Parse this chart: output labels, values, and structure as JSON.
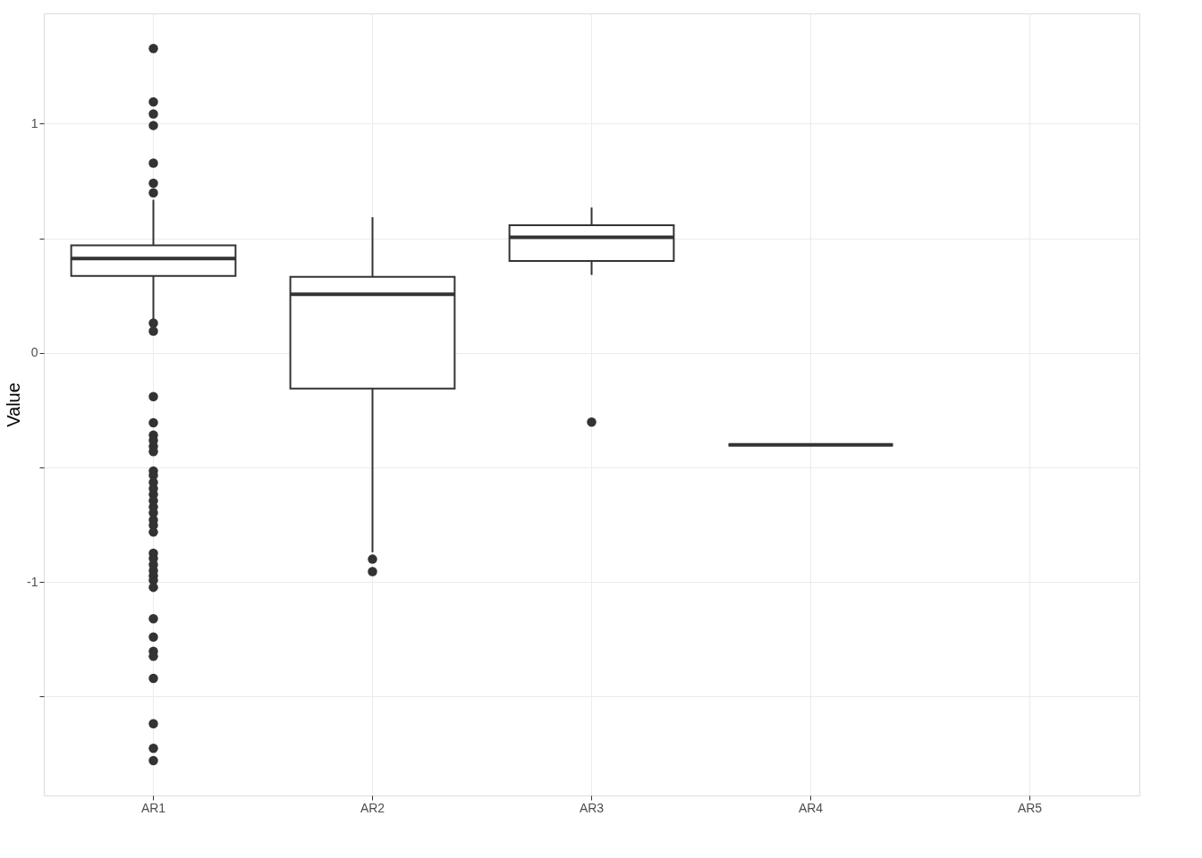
{
  "chart_data": {
    "type": "box",
    "ylabel": "Value",
    "categories": [
      "AR1",
      "AR2",
      "AR3",
      "AR4",
      "AR5"
    ],
    "boxes": [
      {
        "low": 0.14,
        "q1": 0.336,
        "median": 0.412,
        "q3": 0.469,
        "high": 0.668,
        "outliers": [
          1.328,
          1.095,
          1.042,
          0.992,
          0.828,
          0.74,
          0.698,
          0.13,
          0.095,
          -0.191,
          -0.305,
          -0.359,
          -0.382,
          -0.408,
          -0.431,
          -0.515,
          -0.534,
          -0.565,
          -0.592,
          -0.618,
          -0.645,
          -0.672,
          -0.698,
          -0.729,
          -0.752,
          -0.782,
          -0.874,
          -0.897,
          -0.924,
          -0.95,
          -0.973,
          -0.992,
          -1.023,
          -1.16,
          -1.24,
          -1.302,
          -1.324,
          -1.42,
          -1.618,
          -1.725,
          -1.779
        ]
      },
      {
        "low": -0.87,
        "q1": -0.156,
        "median": 0.256,
        "q3": 0.332,
        "high": 0.592,
        "outliers": [
          -0.9,
          -0.954
        ]
      },
      {
        "low": 0.34,
        "q1": 0.401,
        "median": 0.504,
        "q3": 0.557,
        "high": 0.634,
        "outliers": [
          -0.302
        ]
      },
      {
        "low": -0.401,
        "q1": -0.401,
        "median": -0.401,
        "q3": -0.401,
        "high": -0.401
      },
      null
    ],
    "ylim": [
      -1.931,
      1.481
    ],
    "yticks": [
      {
        "value": -1.5,
        "label": null
      },
      -1,
      {
        "value": -0.5,
        "label": null
      },
      0,
      {
        "value": 0.5,
        "label": null
      },
      1
    ],
    "grid": true
  }
}
